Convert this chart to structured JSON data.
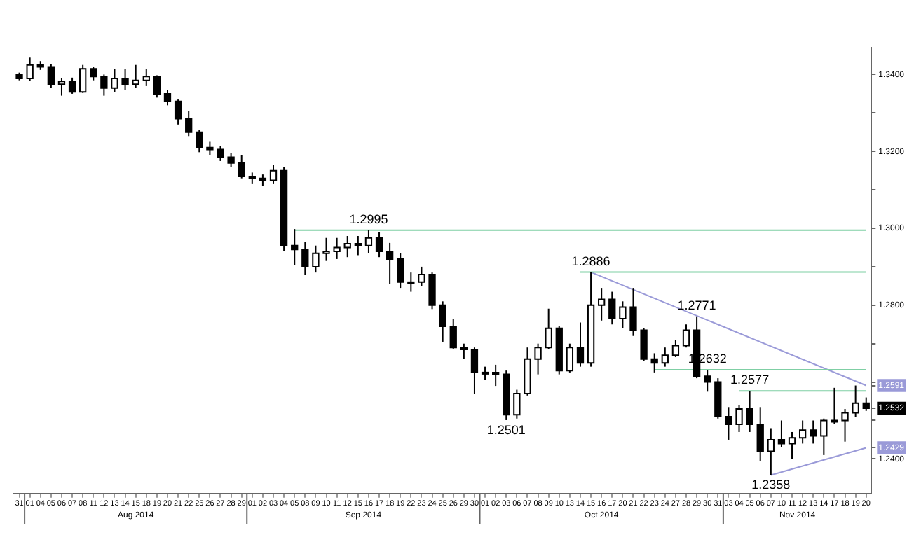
{
  "chart_data": {
    "type": "candlestick",
    "categories": [
      "31",
      "01",
      "04",
      "05",
      "06",
      "07",
      "08",
      "11",
      "12",
      "13",
      "14",
      "15",
      "18",
      "19",
      "20",
      "21",
      "22",
      "25",
      "26",
      "27",
      "28",
      "29",
      "01",
      "02",
      "03",
      "04",
      "05",
      "08",
      "09",
      "10",
      "11",
      "12",
      "15",
      "16",
      "17",
      "18",
      "19",
      "22",
      "23",
      "24",
      "25",
      "26",
      "29",
      "30",
      "01",
      "02",
      "03",
      "06",
      "07",
      "08",
      "09",
      "10",
      "13",
      "14",
      "15",
      "16",
      "17",
      "20",
      "21",
      "22",
      "23",
      "24",
      "27",
      "28",
      "29",
      "30",
      "31",
      "03",
      "04",
      "05",
      "06",
      "07",
      "10",
      "11",
      "12",
      "13",
      "14",
      "17",
      "18",
      "19",
      "20"
    ],
    "ohlc": [
      [
        1.34,
        1.3405,
        1.3385,
        1.339
      ],
      [
        1.339,
        1.3444,
        1.3383,
        1.3425
      ],
      [
        1.3425,
        1.3435,
        1.3412,
        1.342
      ],
      [
        1.342,
        1.3428,
        1.3365,
        1.3375
      ],
      [
        1.3375,
        1.339,
        1.3345,
        1.3382
      ],
      [
        1.3382,
        1.3392,
        1.335,
        1.3355
      ],
      [
        1.3355,
        1.3425,
        1.3352,
        1.3415
      ],
      [
        1.3415,
        1.342,
        1.3385,
        1.3395
      ],
      [
        1.3395,
        1.34,
        1.3345,
        1.3365
      ],
      [
        1.3365,
        1.3414,
        1.3355,
        1.339
      ],
      [
        1.339,
        1.3415,
        1.336,
        1.3375
      ],
      [
        1.3375,
        1.3425,
        1.3365,
        1.3385
      ],
      [
        1.3385,
        1.3415,
        1.337,
        1.3395
      ],
      [
        1.3395,
        1.3398,
        1.334,
        1.335
      ],
      [
        1.335,
        1.336,
        1.332,
        1.333
      ],
      [
        1.333,
        1.3335,
        1.327,
        1.3285
      ],
      [
        1.3285,
        1.3305,
        1.324,
        1.325
      ],
      [
        1.325,
        1.3255,
        1.3198,
        1.321
      ],
      [
        1.321,
        1.3225,
        1.319,
        1.3205
      ],
      [
        1.3205,
        1.3215,
        1.3175,
        1.3185
      ],
      [
        1.3185,
        1.3195,
        1.316,
        1.317
      ],
      [
        1.317,
        1.319,
        1.313,
        1.3135
      ],
      [
        1.3135,
        1.3145,
        1.3115,
        1.313
      ],
      [
        1.313,
        1.314,
        1.311,
        1.3125
      ],
      [
        1.3125,
        1.3165,
        1.3115,
        1.315
      ],
      [
        1.315,
        1.316,
        1.294,
        1.2955
      ],
      [
        1.2955,
        1.2998,
        1.2905,
        1.2945
      ],
      [
        1.2945,
        1.2965,
        1.2878,
        1.29
      ],
      [
        1.29,
        1.2955,
        1.2885,
        1.2935
      ],
      [
        1.2935,
        1.2975,
        1.2915,
        1.294
      ],
      [
        1.294,
        1.2975,
        1.292,
        1.295
      ],
      [
        1.295,
        1.298,
        1.2925,
        1.296
      ],
      [
        1.296,
        1.298,
        1.293,
        1.2955
      ],
      [
        1.2955,
        1.2995,
        1.2935,
        1.2975
      ],
      [
        1.2975,
        1.299,
        1.2925,
        1.294
      ],
      [
        1.294,
        1.2962,
        1.2855,
        1.292
      ],
      [
        1.292,
        1.2935,
        1.2845,
        1.286
      ],
      [
        1.286,
        1.2885,
        1.2835,
        1.286
      ],
      [
        1.286,
        1.29,
        1.285,
        1.288
      ],
      [
        1.288,
        1.2885,
        1.279,
        1.28
      ],
      [
        1.28,
        1.281,
        1.2705,
        1.2745
      ],
      [
        1.2745,
        1.2765,
        1.2685,
        1.269
      ],
      [
        1.269,
        1.27,
        1.266,
        1.2685
      ],
      [
        1.2685,
        1.269,
        1.257,
        1.2625
      ],
      [
        1.2625,
        1.264,
        1.2605,
        1.2625
      ],
      [
        1.2625,
        1.2645,
        1.259,
        1.262
      ],
      [
        1.262,
        1.263,
        1.2501,
        1.2515
      ],
      [
        1.2515,
        1.258,
        1.2505,
        1.257
      ],
      [
        1.257,
        1.269,
        1.2565,
        1.266
      ],
      [
        1.266,
        1.27,
        1.262,
        1.269
      ],
      [
        1.269,
        1.2791,
        1.2685,
        1.274
      ],
      [
        1.274,
        1.2745,
        1.262,
        1.263
      ],
      [
        1.263,
        1.27,
        1.2625,
        1.269
      ],
      [
        1.269,
        1.2755,
        1.264,
        1.265
      ],
      [
        1.265,
        1.2886,
        1.264,
        1.28
      ],
      [
        1.28,
        1.2845,
        1.276,
        1.2815
      ],
      [
        1.2815,
        1.2835,
        1.275,
        1.2765
      ],
      [
        1.2765,
        1.281,
        1.274,
        1.2795
      ],
      [
        1.2795,
        1.2845,
        1.272,
        1.2735
      ],
      [
        1.2735,
        1.274,
        1.2655,
        1.266
      ],
      [
        1.266,
        1.2675,
        1.2625,
        1.265
      ],
      [
        1.265,
        1.269,
        1.264,
        1.267
      ],
      [
        1.267,
        1.271,
        1.2665,
        1.2695
      ],
      [
        1.2695,
        1.275,
        1.269,
        1.2735
      ],
      [
        1.2735,
        1.2771,
        1.261,
        1.2615
      ],
      [
        1.2615,
        1.2632,
        1.2575,
        1.26
      ],
      [
        1.26,
        1.261,
        1.2505,
        1.251
      ],
      [
        1.251,
        1.2535,
        1.245,
        1.249
      ],
      [
        1.249,
        1.254,
        1.247,
        1.253
      ],
      [
        1.253,
        1.2577,
        1.247,
        1.249
      ],
      [
        1.249,
        1.2535,
        1.2395,
        1.242
      ],
      [
        1.242,
        1.248,
        1.2358,
        1.245
      ],
      [
        1.245,
        1.25,
        1.243,
        1.244
      ],
      [
        1.244,
        1.247,
        1.24,
        1.2455
      ],
      [
        1.2455,
        1.25,
        1.244,
        1.2475
      ],
      [
        1.2475,
        1.25,
        1.244,
        1.246
      ],
      [
        1.246,
        1.2505,
        1.241,
        1.25
      ],
      [
        1.25,
        1.2585,
        1.249,
        1.25
      ],
      [
        1.25,
        1.253,
        1.2445,
        1.252
      ],
      [
        1.252,
        1.2591,
        1.251,
        1.2545
      ],
      [
        1.2545,
        1.256,
        1.2525,
        1.2532
      ]
    ],
    "series": [
      {
        "type": "line",
        "values": [
          null,
          null,
          null,
          null,
          null,
          null,
          null,
          null,
          null,
          null,
          null,
          null,
          null,
          null,
          null,
          null,
          null,
          null,
          null,
          null,
          null,
          null,
          null,
          null,
          null,
          null,
          1.2995,
          null,
          null,
          null,
          null,
          null,
          null,
          null,
          null,
          null,
          null,
          null,
          null,
          null,
          null,
          null,
          null,
          null,
          null,
          null,
          null,
          null,
          null,
          null,
          null,
          null,
          null,
          null,
          null,
          null,
          null,
          null,
          null,
          null,
          null,
          null,
          null,
          null,
          null,
          null,
          null,
          null,
          null,
          null,
          null,
          null,
          null,
          null,
          null,
          null,
          null,
          null,
          null,
          null,
          1.2995
        ],
        "color": "#7fcfa4"
      },
      {
        "type": "line",
        "values": [
          null,
          null,
          null,
          null,
          null,
          null,
          null,
          null,
          null,
          null,
          null,
          null,
          null,
          null,
          null,
          null,
          null,
          null,
          null,
          null,
          null,
          null,
          null,
          null,
          null,
          null,
          null,
          null,
          null,
          null,
          null,
          null,
          null,
          null,
          null,
          null,
          null,
          null,
          null,
          null,
          null,
          null,
          null,
          null,
          null,
          null,
          null,
          null,
          null,
          null,
          null,
          null,
          null,
          1.2886,
          null,
          null,
          null,
          null,
          null,
          null,
          null,
          null,
          null,
          null,
          null,
          null,
          null,
          null,
          null,
          null,
          null,
          null,
          null,
          null,
          null,
          null,
          null,
          null,
          null,
          null,
          1.2886
        ],
        "color": "#7fcfa4"
      },
      {
        "type": "line",
        "values": [
          null,
          null,
          null,
          null,
          null,
          null,
          null,
          null,
          null,
          null,
          null,
          null,
          null,
          null,
          null,
          null,
          null,
          null,
          null,
          null,
          null,
          null,
          null,
          null,
          null,
          null,
          null,
          null,
          null,
          null,
          null,
          null,
          null,
          null,
          null,
          null,
          null,
          null,
          null,
          null,
          null,
          null,
          null,
          null,
          null,
          null,
          null,
          null,
          null,
          null,
          null,
          null,
          null,
          null,
          null,
          null,
          null,
          null,
          null,
          null,
          1.2632,
          null,
          null,
          null,
          null,
          null,
          null,
          null,
          null,
          null,
          null,
          null,
          null,
          null,
          null,
          null,
          null,
          null,
          null,
          null,
          1.2632
        ],
        "color": "#7fcfa4"
      },
      {
        "type": "line",
        "values": [
          null,
          null,
          null,
          null,
          null,
          null,
          null,
          null,
          null,
          null,
          null,
          null,
          null,
          null,
          null,
          null,
          null,
          null,
          null,
          null,
          null,
          null,
          null,
          null,
          null,
          null,
          null,
          null,
          null,
          null,
          null,
          null,
          null,
          null,
          null,
          null,
          null,
          null,
          null,
          null,
          null,
          null,
          null,
          null,
          null,
          null,
          null,
          null,
          null,
          null,
          null,
          null,
          null,
          null,
          null,
          null,
          null,
          null,
          null,
          null,
          null,
          null,
          null,
          null,
          null,
          null,
          null,
          null,
          1.2577,
          null,
          null,
          null,
          null,
          null,
          null,
          null,
          null,
          null,
          null,
          null,
          1.2577
        ],
        "color": "#7fcfa4"
      },
      {
        "type": "line",
        "values": [
          null,
          null,
          null,
          null,
          null,
          null,
          null,
          null,
          null,
          null,
          null,
          null,
          null,
          null,
          null,
          null,
          null,
          null,
          null,
          null,
          null,
          null,
          null,
          null,
          null,
          null,
          null,
          null,
          null,
          null,
          null,
          null,
          null,
          null,
          null,
          null,
          null,
          null,
          null,
          null,
          null,
          null,
          null,
          null,
          null,
          null,
          null,
          null,
          null,
          null,
          null,
          null,
          null,
          null,
          1.2886,
          null,
          null,
          null,
          null,
          null,
          null,
          null,
          null,
          null,
          null,
          null,
          null,
          null,
          null,
          null,
          null,
          null,
          null,
          null,
          null,
          null,
          null,
          null,
          null,
          null,
          1.2591
        ],
        "color": "#9a9ad8"
      },
      {
        "type": "line",
        "values": [
          null,
          null,
          null,
          null,
          null,
          null,
          null,
          null,
          null,
          null,
          null,
          null,
          null,
          null,
          null,
          null,
          null,
          null,
          null,
          null,
          null,
          null,
          null,
          null,
          null,
          null,
          null,
          null,
          null,
          null,
          null,
          null,
          null,
          null,
          null,
          null,
          null,
          null,
          null,
          null,
          null,
          null,
          null,
          null,
          null,
          null,
          null,
          null,
          null,
          null,
          null,
          null,
          null,
          null,
          null,
          null,
          null,
          null,
          null,
          null,
          null,
          null,
          null,
          null,
          null,
          null,
          null,
          null,
          null,
          null,
          null,
          1.2358,
          null,
          null,
          null,
          null,
          null,
          null,
          null,
          null,
          1.2429
        ],
        "color": "#9a9ad8"
      }
    ],
    "ylim": [
      1.231,
      1.347
    ],
    "yticks": [
      {
        "value": 1.34,
        "label": "1.3400"
      },
      {
        "value": 1.33,
        "label": null
      },
      {
        "value": 1.32,
        "label": "1.3200"
      },
      {
        "value": 1.31,
        "label": null
      },
      {
        "value": 1.3,
        "label": "1.3000"
      },
      {
        "value": 1.29,
        "label": null
      },
      {
        "value": 1.28,
        "label": "1.2800"
      },
      {
        "value": 1.27,
        "label": null
      },
      {
        "value": 1.26,
        "label": null
      },
      {
        "value": 1.2591,
        "label": "1.2591"
      },
      {
        "value": 1.2532,
        "label": "1.2532"
      },
      {
        "value": 1.2429,
        "label": "1.2429"
      },
      {
        "value": 1.25,
        "label": null
      },
      {
        "value": 1.24,
        "label": "1.2400"
      }
    ],
    "annotations": [
      "Aug 2014",
      "Sep 2014",
      "Oct 2014",
      "Nov 2014",
      {
        "text": "1.2995",
        "y": 1.2995
      },
      {
        "text": "1.2886",
        "y": 1.2886
      },
      {
        "text": "1.2771",
        "y": 1.2771
      },
      {
        "text": "1.2632",
        "y": 1.2632
      },
      {
        "text": "1.2577",
        "y": 1.2577
      },
      {
        "text": "1.2501",
        "y": 1.2501
      },
      {
        "text": "1.2358",
        "y": 1.2358
      }
    ],
    "legend": false,
    "marker": "none",
    "line_style": "solid"
  }
}
